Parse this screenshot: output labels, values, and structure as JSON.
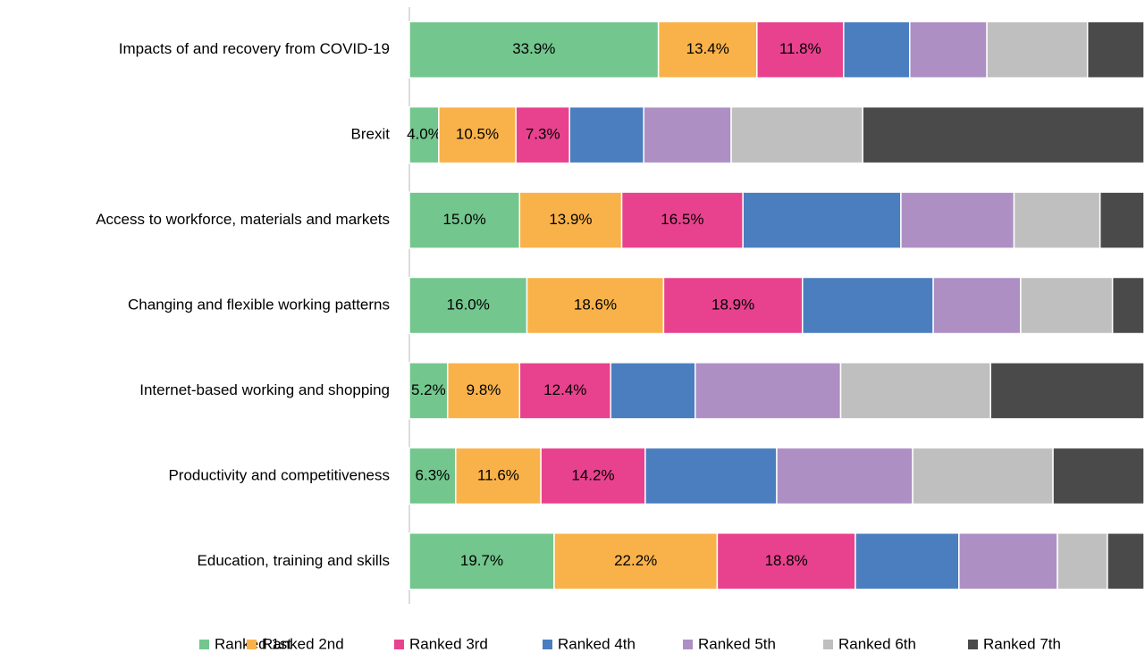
{
  "chart_data": {
    "type": "stacked-bar-horizontal",
    "categories": [
      "Impacts of and recovery from COVID-19",
      "Brexit",
      "Access to workforce, materials and markets",
      "Changing and flexible working patterns",
      "Internet-based working and shopping",
      "Productivity and competitiveness",
      "Education, training and skills"
    ],
    "xlim": [
      0,
      100
    ],
    "legend": "bottom",
    "series": [
      {
        "name": "Ranked 1st",
        "color": "#73c68d",
        "values": [
          33.9,
          4.0,
          15.0,
          16.0,
          5.2,
          6.3,
          19.7
        ],
        "value_labels": [
          "33.9%",
          "4.0%",
          "15.0%",
          "16.0%",
          "5.2%",
          "6.3%",
          "19.7%"
        ]
      },
      {
        "name": "Ranked 2nd",
        "color": "#f9b24a",
        "values": [
          13.4,
          10.5,
          13.9,
          18.6,
          9.8,
          11.6,
          22.2
        ],
        "value_labels": [
          "13.4%",
          "10.5%",
          "13.9%",
          "18.6%",
          "9.8%",
          "11.6%",
          "22.2%"
        ]
      },
      {
        "name": "Ranked 3rd",
        "color": "#e8428e",
        "values": [
          11.8,
          7.3,
          16.5,
          18.9,
          12.4,
          14.2,
          18.8
        ],
        "value_labels": [
          "11.8%",
          "7.3%",
          "16.5%",
          "18.9%",
          "12.4%",
          "14.2%",
          "18.8%"
        ]
      },
      {
        "name": "Ranked 4th",
        "color": "#4a7ebf",
        "values": [
          9.0,
          10.1,
          21.5,
          17.8,
          11.5,
          17.9,
          14.1
        ]
      },
      {
        "name": "Ranked 5th",
        "color": "#ad8fc4",
        "values": [
          10.5,
          11.9,
          15.4,
          11.9,
          19.8,
          18.5,
          13.4
        ]
      },
      {
        "name": "Ranked 6th",
        "color": "#bfbfbf",
        "values": [
          13.7,
          17.9,
          11.7,
          12.5,
          20.4,
          19.1,
          6.8
        ]
      },
      {
        "name": "Ranked 7th",
        "color": "#4a4a4a",
        "values": [
          7.7,
          38.3,
          6.0,
          4.3,
          20.9,
          12.4,
          5.0
        ]
      }
    ]
  }
}
